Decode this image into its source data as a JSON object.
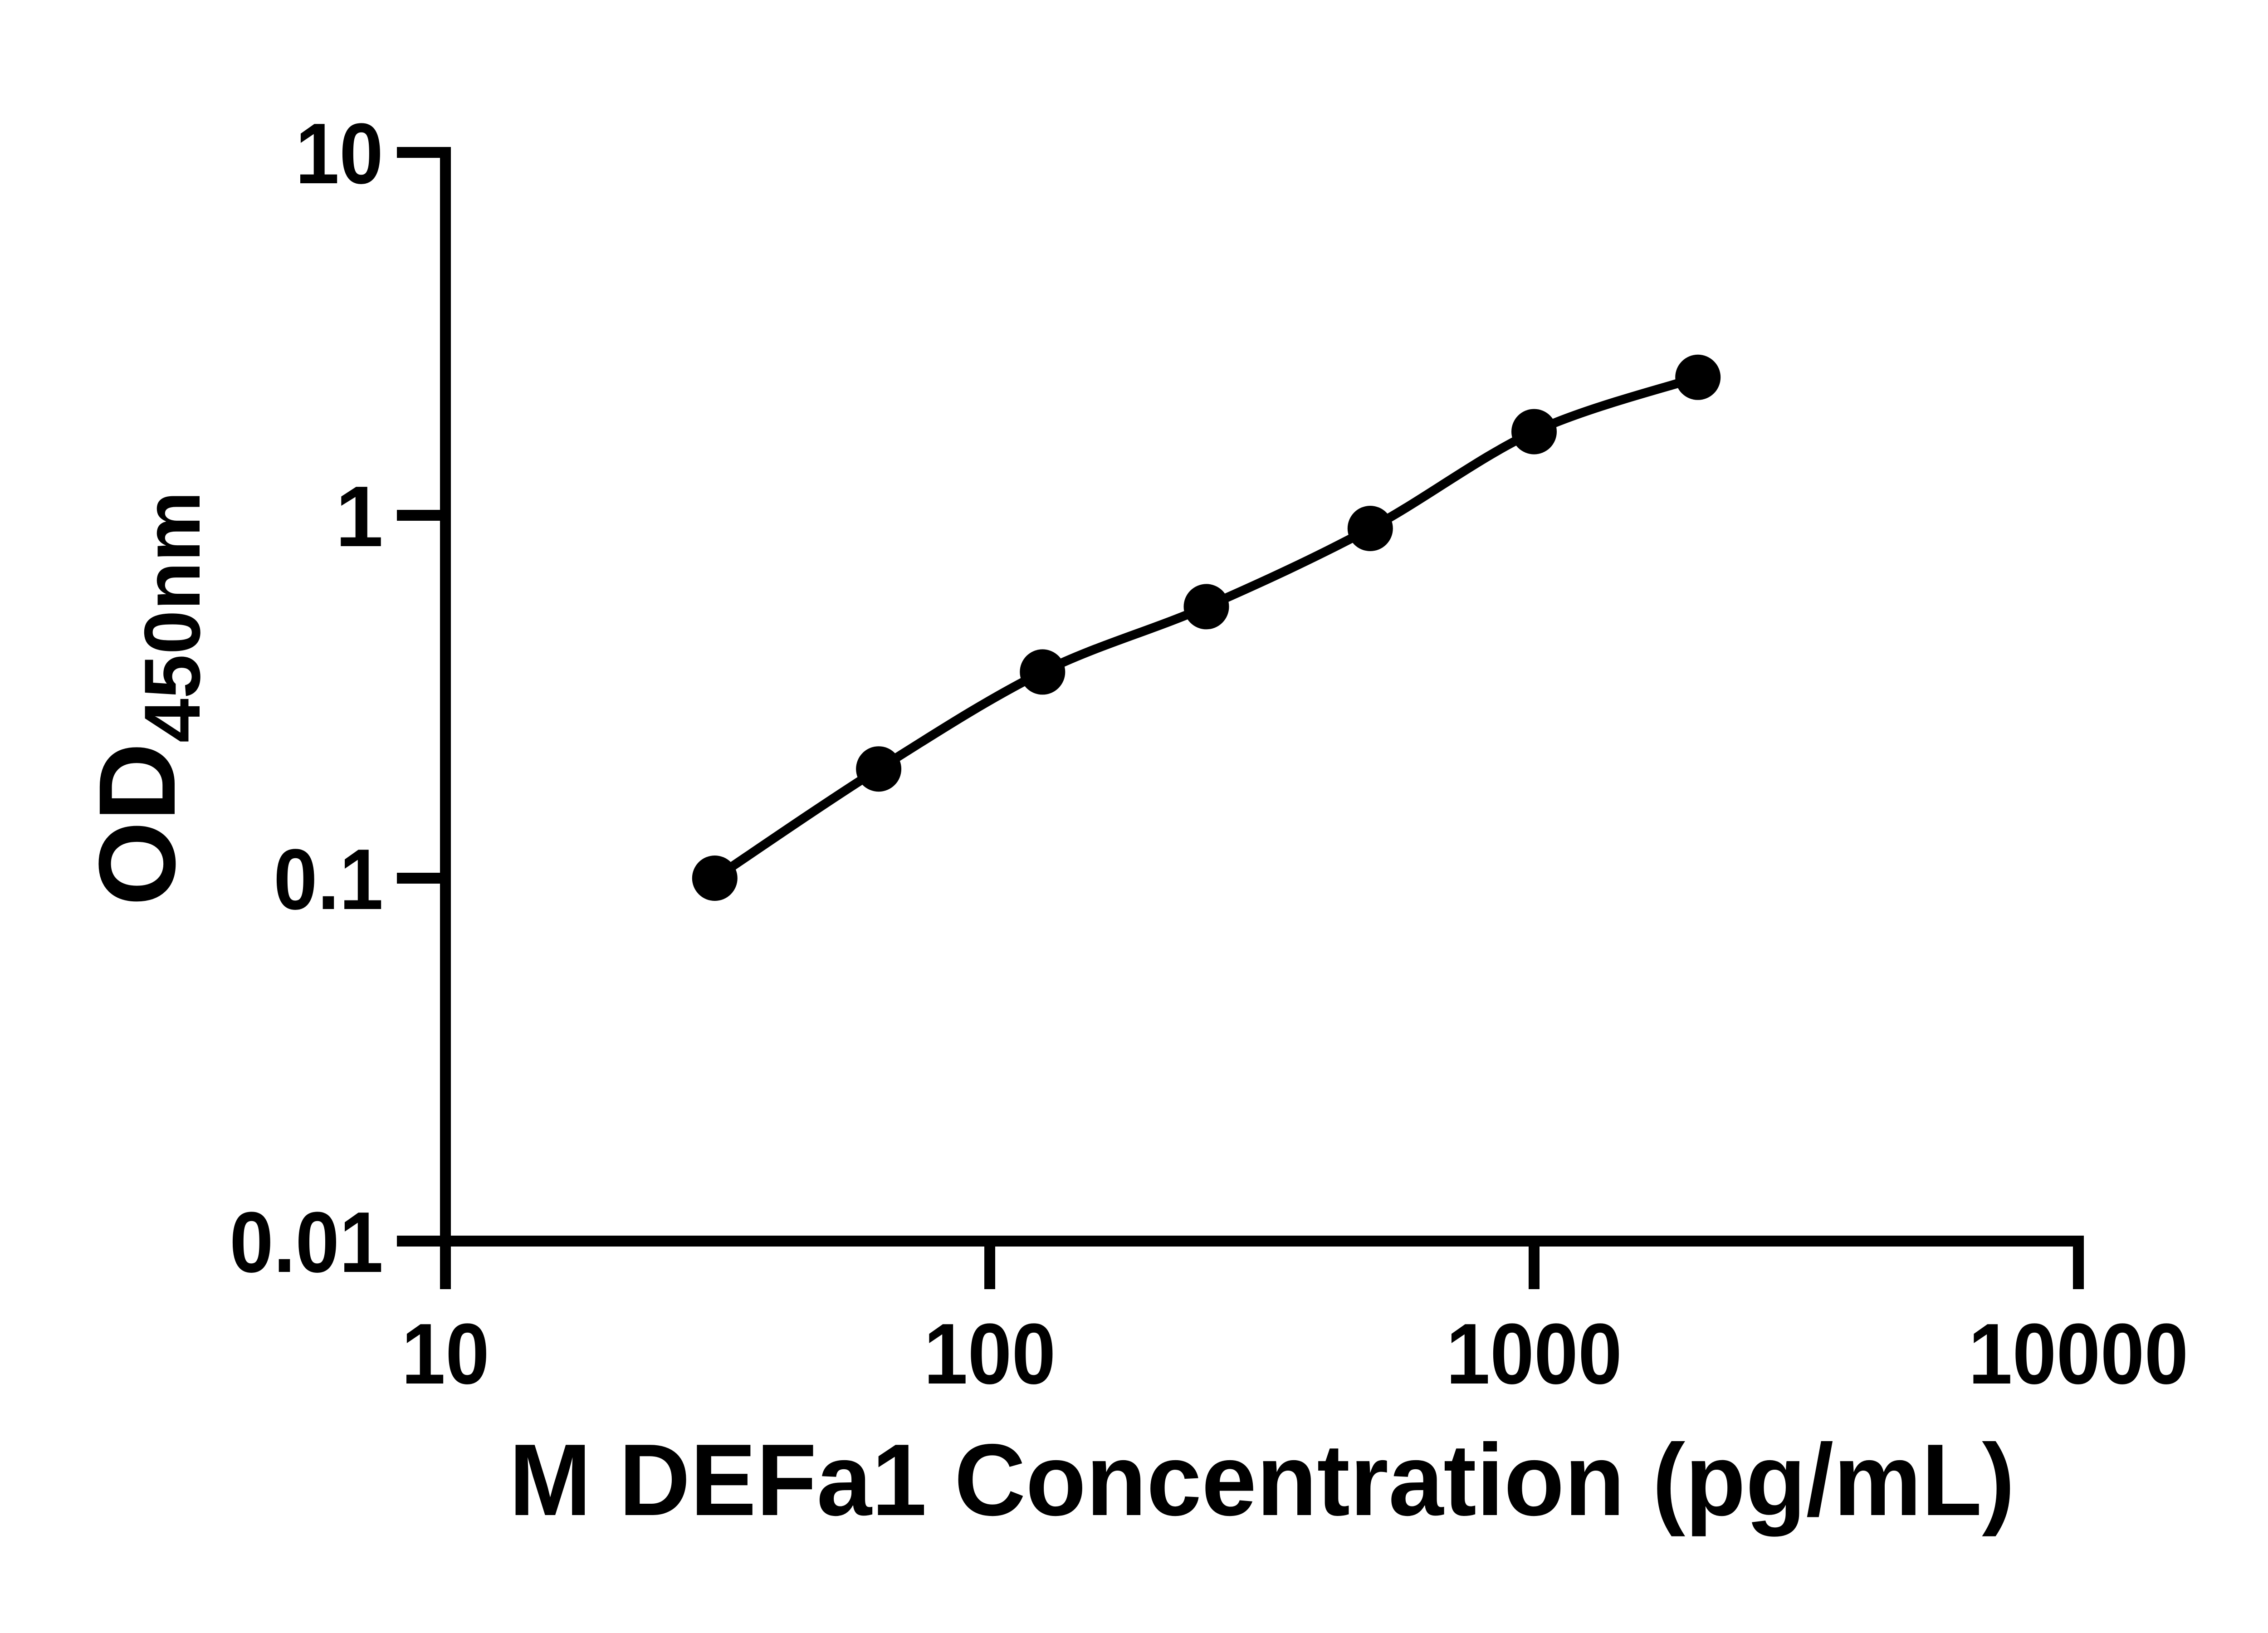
{
  "figure": {
    "description": "ELISA standard curve plot",
    "background_color": "#ffffff",
    "ink_color": "#000000"
  },
  "chart_data": {
    "type": "scatter",
    "title": "",
    "xlabel": "M DEFa1 Concentration (pg/mL)",
    "ylabel": "OD450nm",
    "ylabel_main": "OD",
    "ylabel_sub": "450nm",
    "x_scale": "log",
    "y_scale": "log",
    "xlim": [
      10,
      10000
    ],
    "ylim": [
      0.01,
      10
    ],
    "x_ticks": [
      10,
      100,
      1000,
      10000
    ],
    "x_tick_labels": [
      "10",
      "100",
      "1000",
      "10000"
    ],
    "y_ticks": [
      0.01,
      0.1,
      1,
      10
    ],
    "y_tick_labels": [
      "0.01",
      "0.1",
      "1",
      "10"
    ],
    "grid": false,
    "legend": false,
    "x": [
      31.25,
      62.5,
      125,
      250,
      500,
      1000,
      2000
    ],
    "y": [
      0.1,
      0.2,
      0.37,
      0.56,
      0.92,
      1.7,
      2.4
    ],
    "marker_shape": "circle",
    "marker_color": "#000000",
    "line_color": "#000000",
    "line_style": "smooth"
  }
}
